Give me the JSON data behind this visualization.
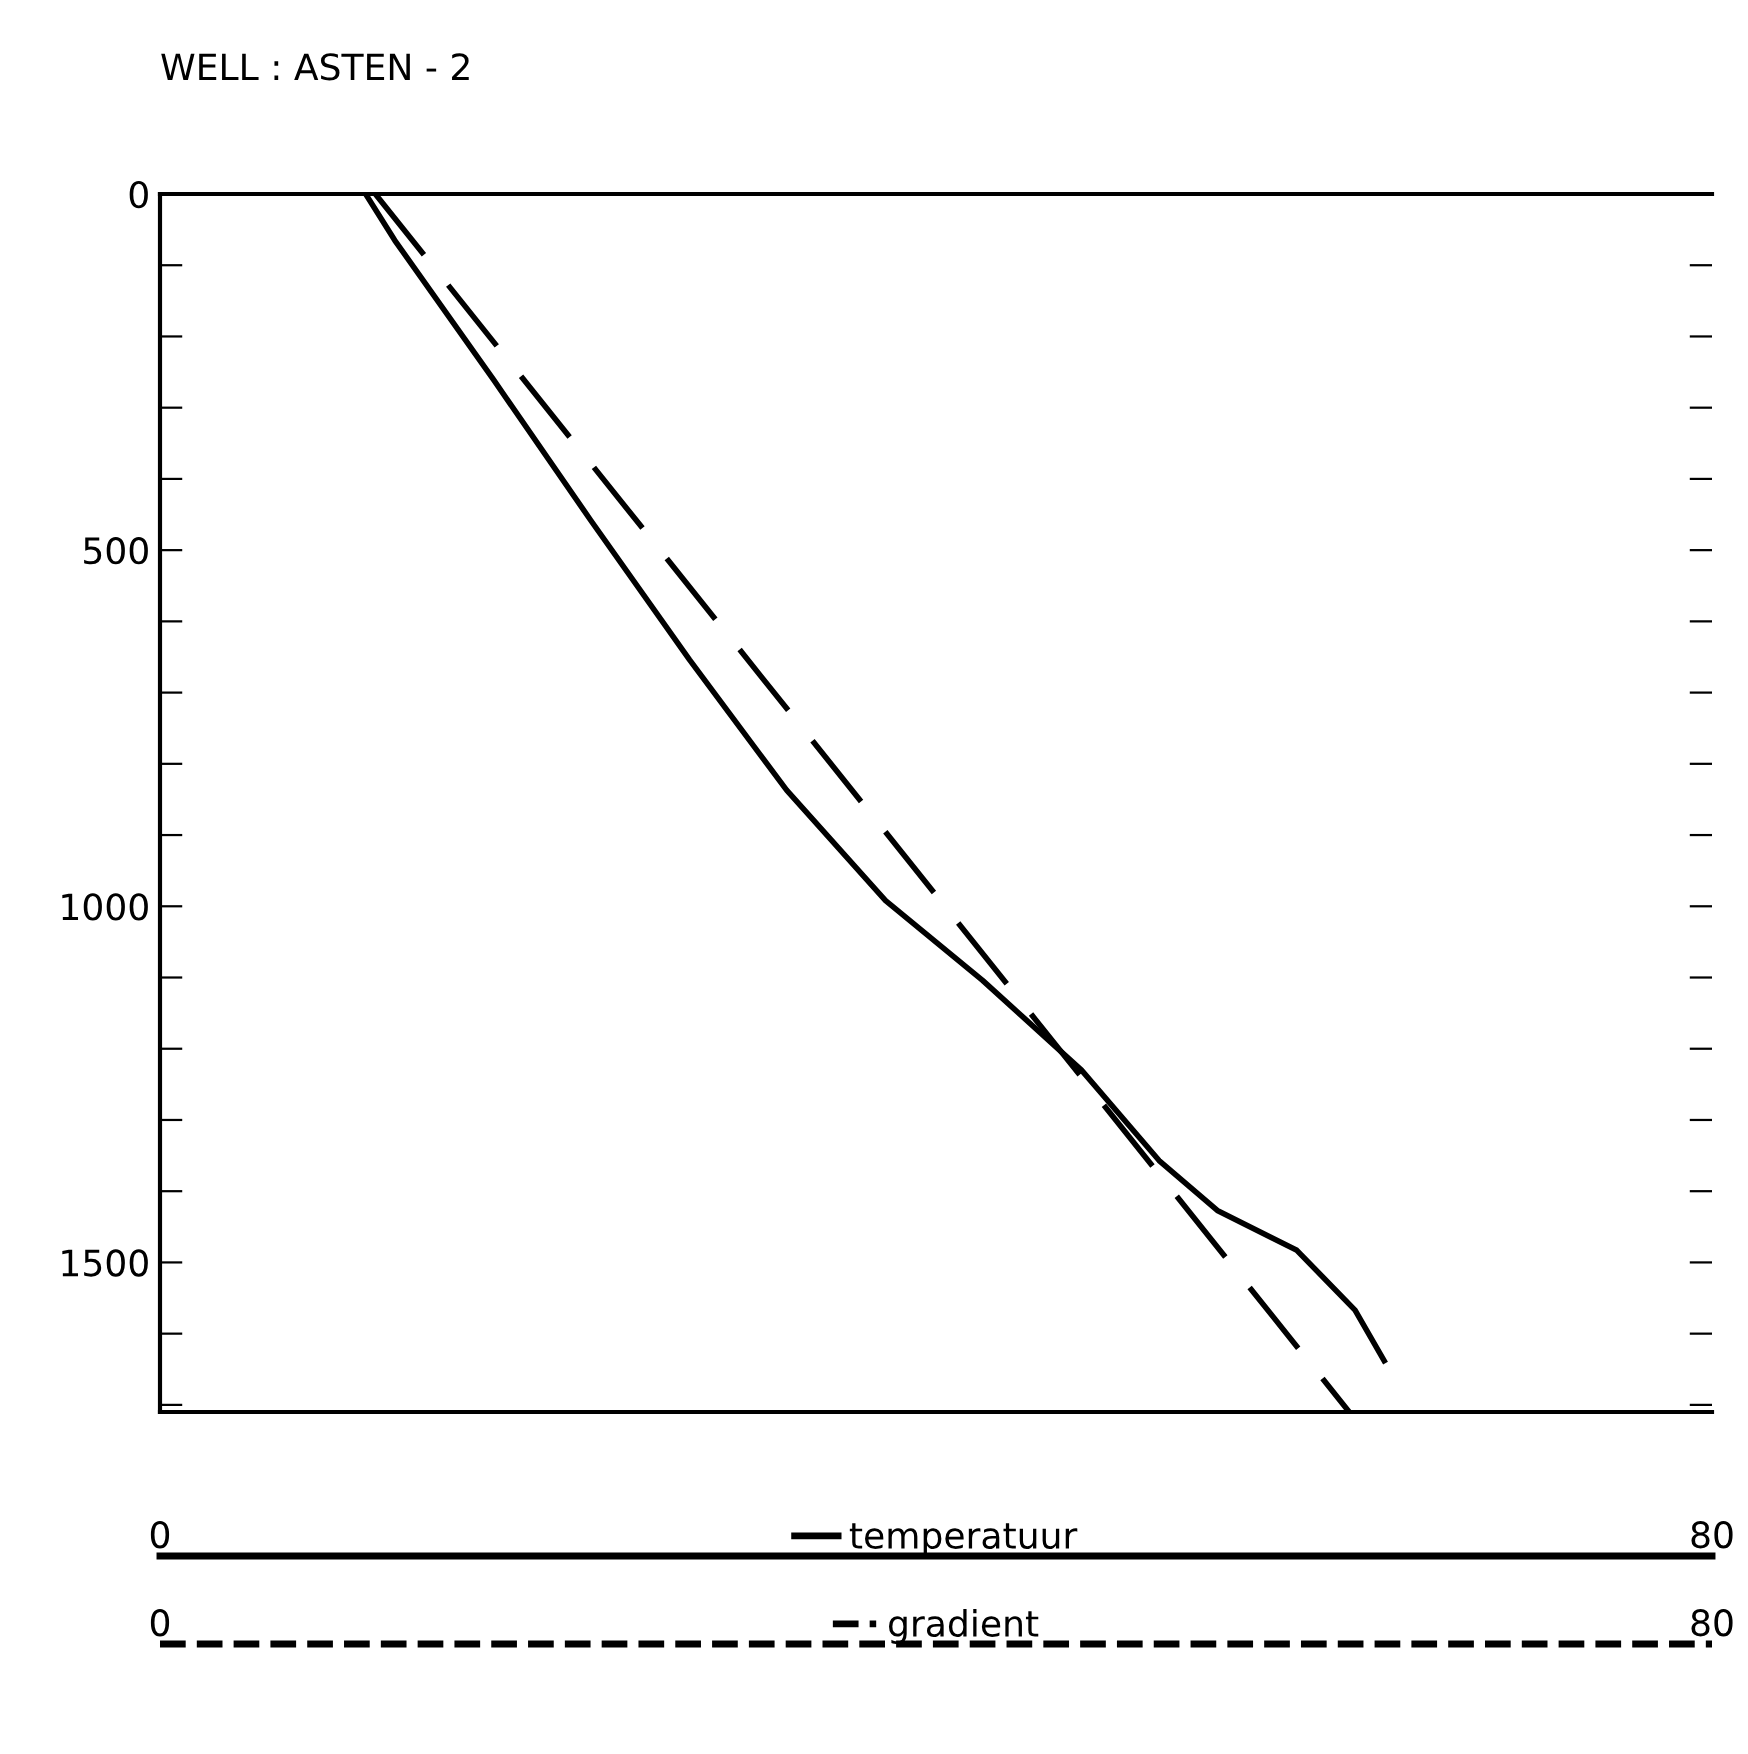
{
  "chart_data": {
    "type": "line",
    "title": "WELL : ASTEN - 2",
    "xlim": [
      0,
      80
    ],
    "xticks": [
      0,
      80
    ],
    "x2lim": [
      0,
      80
    ],
    "x2ticks": [
      0,
      80
    ],
    "ylim": [
      1710,
      0
    ],
    "yticks": [
      0,
      {
        "value": 100,
        "label": null
      },
      {
        "value": 200,
        "label": null
      },
      {
        "value": 300,
        "label": null
      },
      {
        "value": 400,
        "label": null
      },
      500,
      {
        "value": 600,
        "label": null
      },
      {
        "value": 700,
        "label": null
      },
      {
        "value": 800,
        "label": null
      },
      {
        "value": 900,
        "label": null
      },
      1000,
      {
        "value": 1100,
        "label": null
      },
      {
        "value": 1200,
        "label": null
      },
      {
        "value": 1300,
        "label": null
      },
      {
        "value": 1400,
        "label": null
      },
      1500,
      {
        "value": 1600,
        "label": null
      },
      {
        "value": 1700,
        "label": null
      }
    ],
    "grid": false,
    "legend": "bottom",
    "marker": "none",
    "series": [
      {
        "name": "temperatuur",
        "color": "#000000",
        "line_style": "solid",
        "x": [
          10.6,
          12.1,
          17.2,
          22.2,
          27.3,
          32.3,
          37.4,
          42.4,
          47.5,
          51.5,
          54.5,
          58.6,
          61.6,
          63.1
        ],
        "values": [
          0,
          65,
          261,
          458,
          654,
          837,
          992,
          1104,
          1230,
          1357,
          1427,
          1483,
          1567,
          1638
        ]
      },
      {
        "name": "gradient",
        "color": "#000000",
        "line_style": "dashed",
        "x": [
          11.1,
          61.3
        ],
        "values": [
          0,
          1710
        ]
      }
    ]
  }
}
